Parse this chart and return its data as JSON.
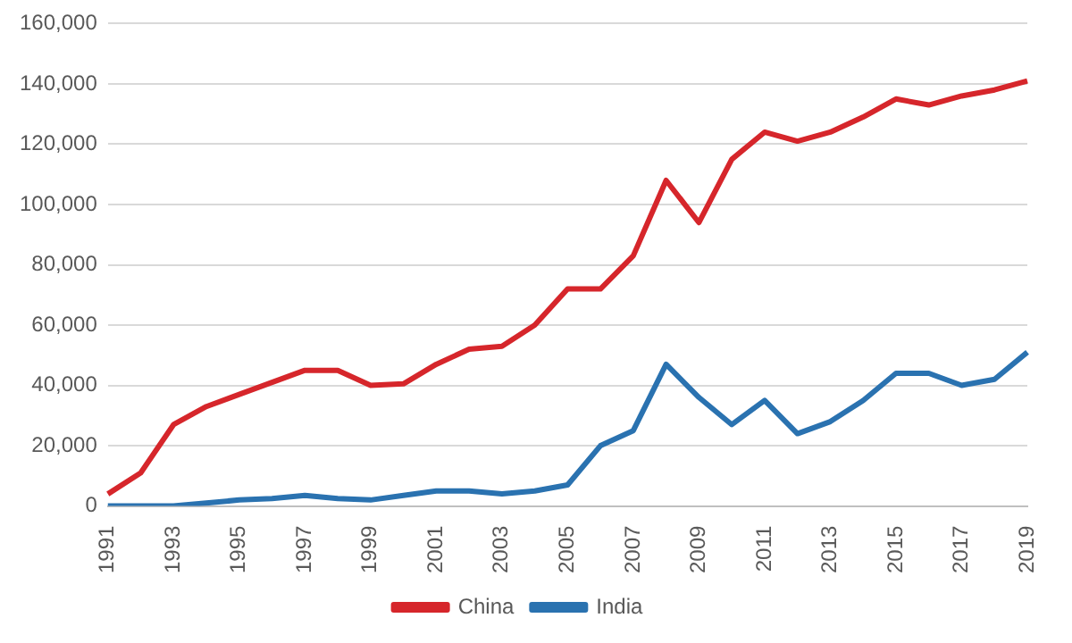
{
  "chart_data": {
    "type": "line",
    "categories": [
      "1991",
      null,
      "1993",
      null,
      "1995",
      null,
      "1997",
      null,
      "1999",
      null,
      "2001",
      null,
      "2003",
      null,
      "2005",
      null,
      "2007",
      null,
      "2009",
      null,
      "2011",
      null,
      "2013",
      null,
      "2015",
      null,
      "2017",
      null,
      "2019"
    ],
    "series": [
      {
        "name": "China",
        "color": "#d6262b",
        "values": [
          4000,
          11000,
          27000,
          33000,
          37000,
          41000,
          45000,
          45000,
          40000,
          40500,
          47000,
          52000,
          53000,
          60000,
          72000,
          72000,
          83000,
          108000,
          94000,
          115000,
          124000,
          121000,
          124000,
          129000,
          135000,
          133000,
          136000,
          138000,
          141000
        ]
      },
      {
        "name": "India",
        "color": "#2a72b0",
        "values": [
          0,
          0,
          0,
          1000,
          2000,
          2500,
          3500,
          2500,
          2000,
          3500,
          5000,
          5000,
          4000,
          5000,
          7000,
          20000,
          25000,
          47000,
          36000,
          27000,
          35000,
          24000,
          28000,
          35000,
          44000,
          44000,
          40000,
          42000,
          51000
        ]
      }
    ],
    "ylim": [
      0,
      160000
    ],
    "yticks": [
      {
        "value": 0,
        "label": "0"
      },
      {
        "value": 20000,
        "label": "20,000"
      },
      {
        "value": 40000,
        "label": "40,000"
      },
      {
        "value": 60000,
        "label": "60,000"
      },
      {
        "value": 80000,
        "label": "80,000"
      },
      {
        "value": 100000,
        "label": "100,000"
      },
      {
        "value": 120000,
        "label": "120,000"
      },
      {
        "value": 140000,
        "label": "140,000"
      },
      {
        "value": 160000,
        "label": "160,000"
      }
    ],
    "grid": "y",
    "legend": "bottom",
    "marker": "none",
    "line_style": "solid"
  }
}
